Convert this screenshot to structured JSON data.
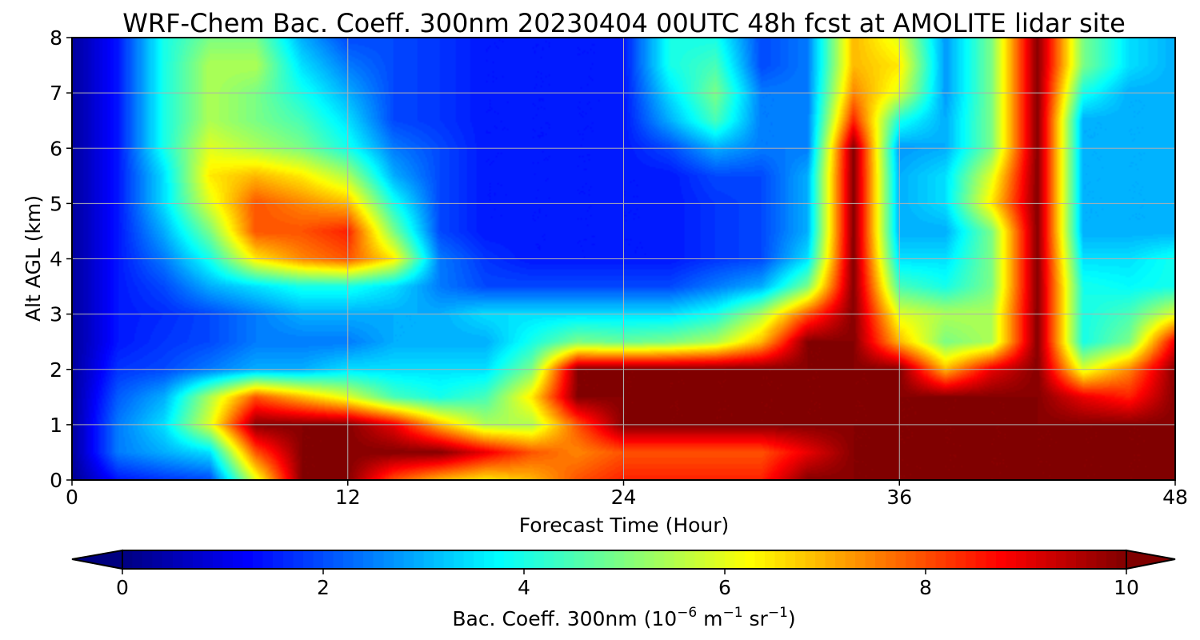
{
  "chart_data": {
    "type": "heatmap",
    "title": "WRF-Chem Bac. Coeff. 300nm  20230404 00UTC 48h fcst at AMOLITE lidar site",
    "xlabel": "Forecast Time (Hour)",
    "ylabel": "Alt AGL (km)",
    "xlim": [
      0,
      48
    ],
    "ylim": [
      0,
      8
    ],
    "x_ticks": [
      0,
      12,
      24,
      36,
      48
    ],
    "y_ticks": [
      0,
      1,
      2,
      3,
      4,
      5,
      6,
      7,
      8
    ],
    "grid": true,
    "colormap": "jet",
    "colorbar": {
      "label_prefix": "Bac. Coeff. 300nm  (10",
      "label_exp1": "−6",
      "label_mid": " m",
      "label_exp2": "−1",
      "label_mid2": " sr",
      "label_exp3": "−1",
      "label_suffix": ")",
      "range": [
        0,
        10
      ],
      "ticks": [
        0,
        2,
        4,
        6,
        8,
        10
      ],
      "extend": "both",
      "placement": "bottom"
    },
    "x": [
      0,
      2,
      4,
      6,
      8,
      10,
      12,
      14,
      16,
      18,
      20,
      22,
      24,
      26,
      28,
      30,
      32,
      34,
      36,
      38,
      40,
      42,
      44,
      46,
      48
    ],
    "y": [
      0,
      0.5,
      1,
      1.5,
      2,
      2.5,
      3,
      3.5,
      4,
      4.5,
      5,
      5.5,
      6,
      6.5,
      7,
      7.5,
      8
    ],
    "z": [
      [
        0.2,
        1.5,
        1.8,
        2,
        6,
        10,
        10,
        8,
        7,
        6.5,
        7,
        8,
        8.5,
        8.5,
        8.5,
        8.5,
        10,
        10,
        10,
        10,
        10,
        10,
        10,
        10,
        10
      ],
      [
        0.3,
        2.5,
        3,
        3.5,
        8,
        10,
        10,
        10,
        10,
        9,
        8,
        7.5,
        8,
        8,
        8,
        8,
        9,
        10,
        10,
        10,
        10,
        10,
        10,
        10,
        10
      ],
      [
        0.3,
        2.5,
        3.5,
        6,
        10,
        10,
        10,
        9,
        7,
        5.5,
        5.5,
        8,
        10,
        10,
        10,
        10,
        10,
        10,
        10,
        10,
        10,
        10,
        10,
        10,
        10
      ],
      [
        0.3,
        2.2,
        3,
        5.5,
        8,
        7,
        6,
        4.5,
        4,
        4.5,
        6.5,
        10,
        10,
        10,
        10,
        10,
        10,
        10,
        10,
        10,
        10,
        10,
        9,
        8.5,
        10
      ],
      [
        0.3,
        1.8,
        2,
        2.5,
        3,
        3,
        3.5,
        3.5,
        3.5,
        3.5,
        5,
        10,
        10,
        10,
        10,
        10,
        10,
        10,
        10,
        7,
        9,
        10,
        6,
        7.5,
        10
      ],
      [
        0.3,
        1.5,
        1.8,
        2,
        2.5,
        2.5,
        2.5,
        3,
        3,
        3,
        4,
        5,
        4.8,
        5,
        5.5,
        7,
        10,
        10,
        7,
        5,
        5.5,
        10,
        4,
        5,
        9
      ],
      [
        0.3,
        1.5,
        1.7,
        2,
        2.5,
        3,
        3,
        3,
        3,
        3.5,
        3.5,
        3.5,
        3.5,
        3.5,
        4,
        5.5,
        8,
        10,
        6,
        5.5,
        5.5,
        10,
        4,
        4.5,
        6
      ],
      [
        0.3,
        1.5,
        2,
        3,
        3.5,
        4,
        4,
        3.5,
        2.5,
        2,
        2,
        2,
        2,
        2,
        2.5,
        3,
        5,
        10,
        4.5,
        4,
        5,
        10,
        4,
        3.8,
        4
      ],
      [
        0.3,
        1.5,
        2.5,
        4,
        6.5,
        7.5,
        8,
        6.5,
        2.5,
        1.8,
        1.5,
        1.5,
        1.5,
        1.5,
        1.8,
        2,
        3.5,
        10,
        3.5,
        3.5,
        5,
        10,
        3.5,
        3.5,
        4
      ],
      [
        0.3,
        1.5,
        3,
        5,
        8,
        8,
        8.5,
        5,
        2,
        1.5,
        1.5,
        1.5,
        1.5,
        1.5,
        1.8,
        2,
        3,
        10,
        3,
        3,
        5,
        10,
        3,
        3,
        3
      ],
      [
        0.3,
        1.5,
        3.5,
        6,
        8,
        7.5,
        7,
        4,
        2,
        1.5,
        1.5,
        1.5,
        1.5,
        1.5,
        1.8,
        2,
        3,
        10,
        3,
        3.5,
        6.5,
        10,
        3,
        3,
        3
      ],
      [
        0.3,
        1.5,
        3.5,
        6.5,
        7,
        6.5,
        5.5,
        3,
        2,
        1.5,
        1.5,
        1.5,
        1.5,
        1.5,
        2,
        2,
        3,
        10,
        3,
        3.5,
        6,
        10,
        3,
        3,
        3
      ],
      [
        0.3,
        1.5,
        4,
        6,
        5.5,
        5,
        4,
        2.5,
        2,
        1.5,
        1.5,
        1.5,
        1.5,
        2,
        3,
        2.5,
        2.5,
        10,
        2.8,
        3,
        5,
        10,
        3,
        3,
        3
      ],
      [
        0.3,
        1.5,
        4,
        5.5,
        5,
        4.5,
        3.5,
        2,
        1.8,
        1.5,
        1.5,
        1.5,
        1.5,
        3,
        4.5,
        2.5,
        2.5,
        8.5,
        4,
        3,
        5,
        10,
        3,
        3,
        3
      ],
      [
        0.3,
        1.5,
        4,
        5.5,
        5,
        4,
        3,
        2,
        1.8,
        1.5,
        1.5,
        1.5,
        1.5,
        3.5,
        5,
        2.5,
        2.5,
        7.5,
        6,
        2.8,
        5,
        10,
        4,
        3,
        3
      ],
      [
        0.3,
        1.5,
        4,
        5.5,
        5.5,
        3.5,
        2.5,
        2,
        1.8,
        1.5,
        1.5,
        1.5,
        1.5,
        4,
        4.5,
        2,
        2.5,
        7,
        6.5,
        2.8,
        5,
        10,
        5,
        3.5,
        3
      ],
      [
        0.3,
        1.5,
        4,
        5,
        5,
        3,
        2,
        2,
        1.8,
        1.5,
        1.5,
        1.5,
        1.5,
        4,
        4,
        2,
        2.5,
        7,
        6,
        2.8,
        5,
        10,
        5,
        3.5,
        3
      ]
    ]
  }
}
